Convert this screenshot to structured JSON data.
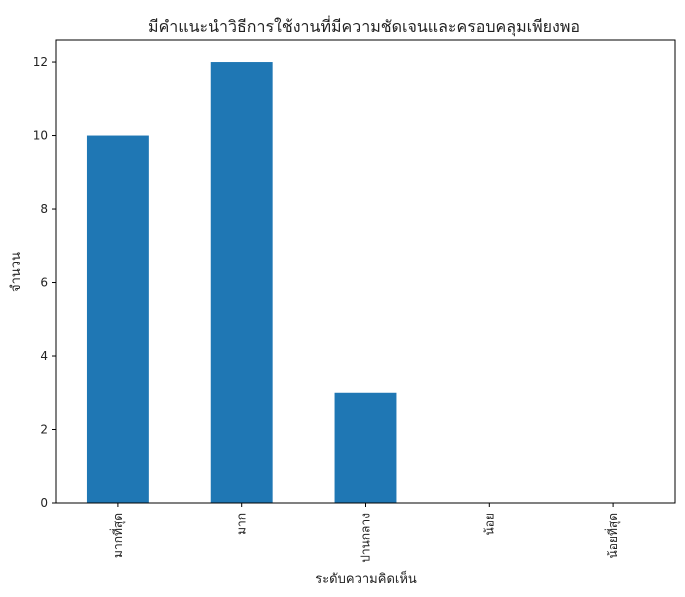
{
  "chart_data": {
    "type": "bar",
    "title": "มีคำแนะนำวิธีการใช้งานที่มีความชัดเจนและครอบคลุมเพียงพอ",
    "xlabel": "ระดับความคิดเห็น",
    "ylabel": "จำนวน",
    "categories": [
      "มากที่สุด",
      "มาก",
      "ปานกลาง",
      "น้อย",
      "น้อยที่สุด"
    ],
    "values": [
      10,
      12,
      3,
      0,
      0
    ],
    "yticks": [
      0,
      2,
      4,
      6,
      8,
      10,
      12
    ],
    "ylim": [
      0,
      12.6
    ],
    "bar_color": "#1f77b4",
    "grid": false,
    "legend": "none"
  }
}
